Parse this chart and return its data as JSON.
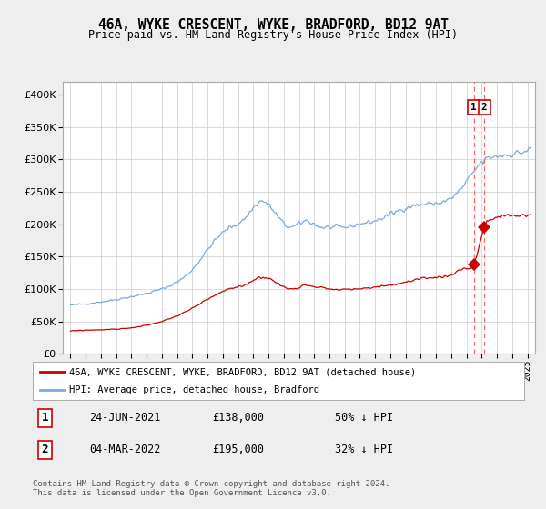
{
  "title": "46A, WYKE CRESCENT, WYKE, BRADFORD, BD12 9AT",
  "subtitle": "Price paid vs. HM Land Registry's House Price Index (HPI)",
  "bg_color": "#eeeeee",
  "plot_bg_color": "#ffffff",
  "hpi_color": "#7aaadd",
  "price_color": "#cc0000",
  "vline_color": "#ff6666",
  "sale1_date": 2021.48,
  "sale1_price": 138000,
  "sale2_date": 2022.17,
  "sale2_price": 195000,
  "ylim_max": 420000,
  "xlim_min": 1994.5,
  "xlim_max": 2025.5,
  "footer": "Contains HM Land Registry data © Crown copyright and database right 2024.\nThis data is licensed under the Open Government Licence v3.0.",
  "legend_line1": "46A, WYKE CRESCENT, WYKE, BRADFORD, BD12 9AT (detached house)",
  "legend_line2": "HPI: Average price, detached house, Bradford",
  "table_row1": [
    "1",
    "24-JUN-2021",
    "£138,000",
    "50% ↓ HPI"
  ],
  "table_row2": [
    "2",
    "04-MAR-2022",
    "£195,000",
    "32% ↓ HPI"
  ],
  "hpi_keypoints": [
    [
      1995.0,
      75000
    ],
    [
      1997.0,
      80000
    ],
    [
      1999.0,
      88000
    ],
    [
      2001.0,
      100000
    ],
    [
      2003.0,
      130000
    ],
    [
      2004.5,
      175000
    ],
    [
      2005.5,
      195000
    ],
    [
      2006.5,
      210000
    ],
    [
      2007.5,
      235000
    ],
    [
      2008.5,
      215000
    ],
    [
      2009.5,
      195000
    ],
    [
      2010.5,
      205000
    ],
    [
      2011.0,
      200000
    ],
    [
      2011.5,
      195000
    ],
    [
      2012.0,
      195000
    ],
    [
      2013.0,
      195000
    ],
    [
      2014.0,
      200000
    ],
    [
      2015.0,
      205000
    ],
    [
      2016.0,
      215000
    ],
    [
      2017.0,
      225000
    ],
    [
      2018.0,
      230000
    ],
    [
      2019.0,
      232000
    ],
    [
      2020.0,
      240000
    ],
    [
      2021.0,
      265000
    ],
    [
      2022.0,
      295000
    ],
    [
      2023.0,
      305000
    ],
    [
      2024.0,
      308000
    ],
    [
      2025.2,
      315000
    ]
  ],
  "price_keypoints": [
    [
      1995.0,
      35000
    ],
    [
      1997.0,
      37000
    ],
    [
      1999.0,
      40000
    ],
    [
      2001.0,
      50000
    ],
    [
      2003.0,
      70000
    ],
    [
      2004.5,
      90000
    ],
    [
      2005.5,
      100000
    ],
    [
      2006.5,
      107000
    ],
    [
      2007.5,
      118000
    ],
    [
      2008.5,
      110000
    ],
    [
      2009.5,
      100000
    ],
    [
      2010.5,
      106000
    ],
    [
      2011.0,
      104000
    ],
    [
      2011.5,
      102000
    ],
    [
      2012.0,
      100000
    ],
    [
      2013.0,
      99000
    ],
    [
      2014.0,
      100000
    ],
    [
      2015.0,
      103000
    ],
    [
      2016.0,
      106000
    ],
    [
      2017.0,
      110000
    ],
    [
      2018.0,
      115000
    ],
    [
      2019.0,
      118000
    ],
    [
      2020.0,
      122000
    ],
    [
      2021.0,
      132000
    ],
    [
      2021.48,
      138000
    ],
    [
      2022.17,
      195000
    ],
    [
      2022.5,
      205000
    ],
    [
      2023.0,
      210000
    ],
    [
      2024.0,
      213000
    ],
    [
      2025.2,
      215000
    ]
  ]
}
